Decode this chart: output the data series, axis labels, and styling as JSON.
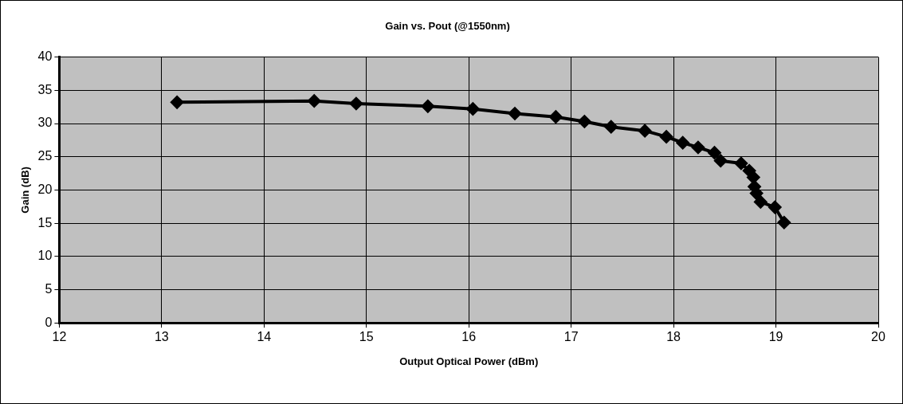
{
  "chart_data": {
    "type": "line",
    "title": "Gain vs. Pout (@1550nm)",
    "xlabel": "Output Optical Power (dBm)",
    "ylabel": "Gain (dB)",
    "x": [
      13.15,
      14.49,
      14.9,
      15.6,
      16.04,
      16.45,
      16.85,
      17.13,
      17.39,
      17.72,
      17.93,
      18.09,
      18.24,
      18.4,
      18.46,
      18.66,
      18.74,
      18.78,
      18.79,
      18.81,
      18.85,
      18.99,
      19.08
    ],
    "series": [
      {
        "color": "#000000",
        "values": [
          33.2,
          33.4,
          33.0,
          32.6,
          32.2,
          31.5,
          31.0,
          30.3,
          29.5,
          28.9,
          28.0,
          27.1,
          26.4,
          25.6,
          24.4,
          24.0,
          22.9,
          21.9,
          20.5,
          19.5,
          18.2,
          17.4,
          15.1
        ]
      }
    ],
    "xlim": [
      12,
      20
    ],
    "xticks": [
      12,
      13,
      14,
      15,
      16,
      17,
      18,
      19,
      20
    ],
    "ylim": [
      0,
      40
    ],
    "yticks": [
      0,
      5,
      10,
      15,
      20,
      25,
      30,
      35,
      40
    ],
    "grid": true,
    "legend": false,
    "marker": "diamond",
    "line_style": "solid"
  }
}
